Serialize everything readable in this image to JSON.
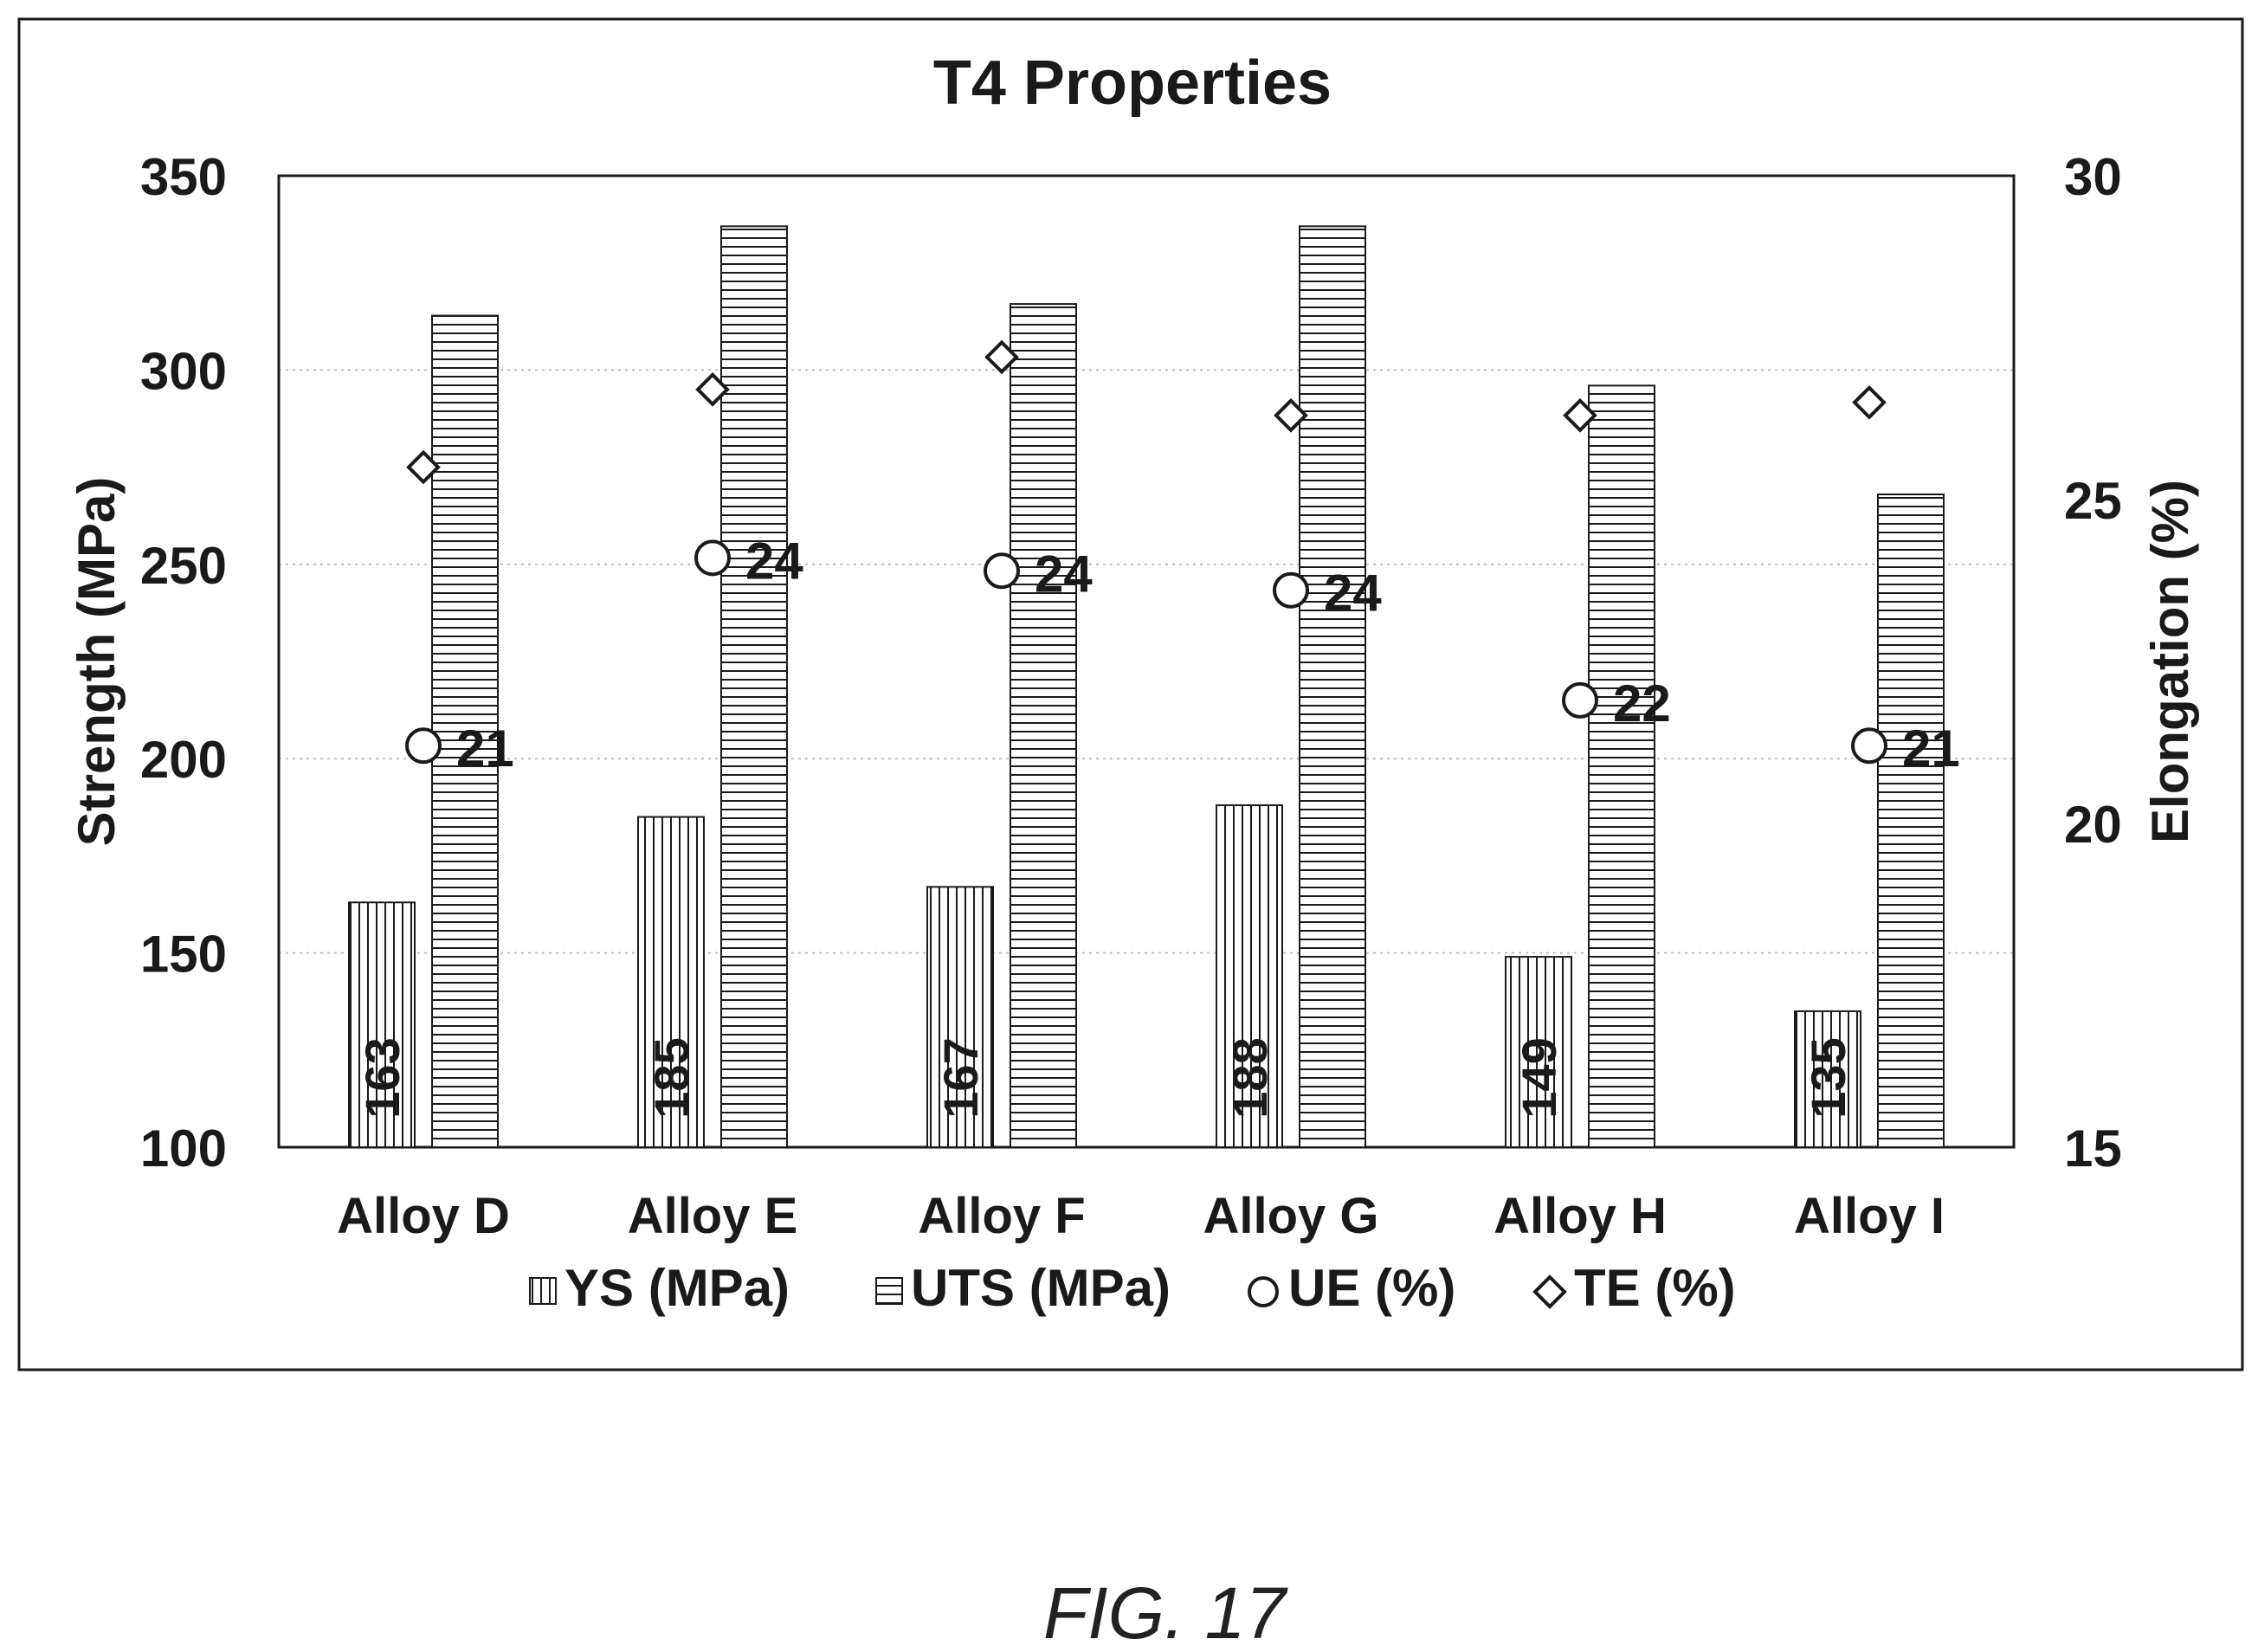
{
  "chart_data": {
    "type": "bar",
    "title": "T4 Properties",
    "ylabel": "Strength (MPa)",
    "y2label": "Elongation (%)",
    "ylim": [
      100,
      350
    ],
    "y2lim": [
      15,
      30
    ],
    "yticks": [
      "100",
      "150",
      "200",
      "250",
      "300",
      "350"
    ],
    "y2ticks": [
      "15",
      "20",
      "25",
      "30"
    ],
    "categories": [
      "Alloy D",
      "Alloy E",
      "Alloy F",
      "Alloy G",
      "Alloy H",
      "Alloy I"
    ],
    "series": [
      {
        "name": "YS (MPa)",
        "type": "bar",
        "axis": "left",
        "pattern": "vertical-lines",
        "values": [
          163,
          185,
          167,
          188,
          149,
          135
        ],
        "labels": [
          "163",
          "185",
          "167",
          "188",
          "149",
          "135"
        ]
      },
      {
        "name": "UTS (MPa)",
        "type": "bar",
        "axis": "left",
        "pattern": "horizontal-lines",
        "values": [
          314,
          337,
          317,
          337,
          296,
          268
        ]
      },
      {
        "name": "UE (%)",
        "type": "scatter",
        "axis": "right",
        "marker": "circle",
        "values": [
          21.2,
          24.1,
          23.9,
          23.6,
          21.9,
          21.2
        ],
        "labels": [
          "21",
          "24",
          "24",
          "24",
          "22",
          "21"
        ]
      },
      {
        "name": "TE (%)",
        "type": "scatter",
        "axis": "right",
        "marker": "diamond",
        "values": [
          25.5,
          26.7,
          27.2,
          26.3,
          26.3,
          26.5
        ]
      }
    ],
    "grid": true,
    "legend_position": "bottom"
  },
  "caption": "FIG. 17",
  "colors": {
    "ink": "#1a1a1a",
    "grid": "#bdbdbd",
    "background": "#ffffff"
  }
}
